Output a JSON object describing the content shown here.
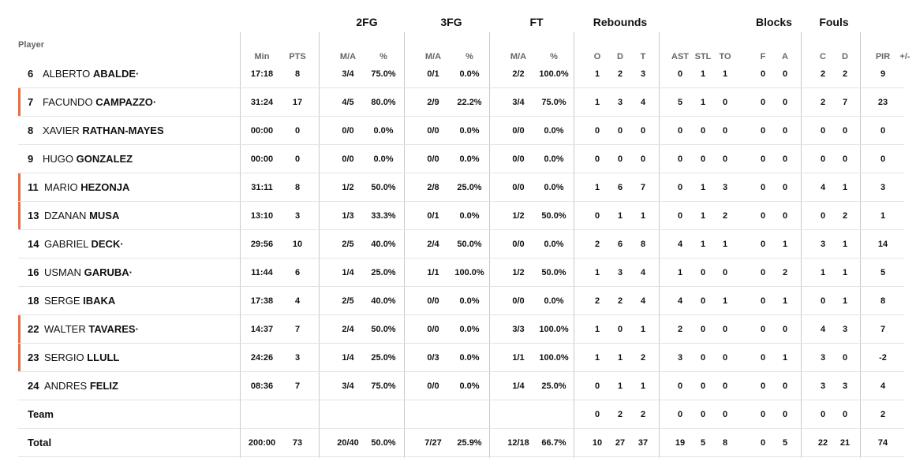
{
  "groups": {
    "fg2": "2FG",
    "fg3": "3FG",
    "ft": "FT",
    "reb": "Rebounds",
    "blk": "Blocks",
    "fouls": "Fouls"
  },
  "player_header": "Player",
  "subheaders": {
    "min": "Min",
    "pts": "PTS",
    "fg2_ma": "M/A",
    "fg2_pct": "%",
    "fg3_ma": "M/A",
    "fg3_pct": "%",
    "ft_ma": "M/A",
    "ft_pct": "%",
    "o": "O",
    "d": "D",
    "t": "T",
    "ast": "AST",
    "stl": "STL",
    "to": "TO",
    "f": "F",
    "a": "A",
    "c": "C",
    "dfoul": "D",
    "pir": "PIR",
    "pm": "+/-"
  },
  "colors": {
    "accent": "#ee6c3c"
  },
  "players": [
    {
      "num": "6",
      "first": "ALBERTO",
      "last": "ABALDE",
      "mark": "·",
      "accent": false,
      "min": "17:18",
      "pts": "8",
      "fg2_ma": "3/4",
      "fg2_pct": "75.0%",
      "fg3_ma": "0/1",
      "fg3_pct": "0.0%",
      "ft_ma": "2/2",
      "ft_pct": "100.0%",
      "o": "1",
      "d": "2",
      "t": "3",
      "ast": "0",
      "stl": "1",
      "to": "1",
      "f": "0",
      "a": "0",
      "c": "2",
      "dfoul": "2",
      "pir": "9",
      "pm": ""
    },
    {
      "num": "7",
      "first": "FACUNDO",
      "last": "CAMPAZZO",
      "mark": "·",
      "accent": true,
      "min": "31:24",
      "pts": "17",
      "fg2_ma": "4/5",
      "fg2_pct": "80.0%",
      "fg3_ma": "2/9",
      "fg3_pct": "22.2%",
      "ft_ma": "3/4",
      "ft_pct": "75.0%",
      "o": "1",
      "d": "3",
      "t": "4",
      "ast": "5",
      "stl": "1",
      "to": "0",
      "f": "0",
      "a": "0",
      "c": "2",
      "dfoul": "7",
      "pir": "23",
      "pm": ""
    },
    {
      "num": "8",
      "first": "XAVIER",
      "last": "RATHAN-MAYES",
      "mark": "",
      "accent": false,
      "min": "00:00",
      "pts": "0",
      "fg2_ma": "0/0",
      "fg2_pct": "0.0%",
      "fg3_ma": "0/0",
      "fg3_pct": "0.0%",
      "ft_ma": "0/0",
      "ft_pct": "0.0%",
      "o": "0",
      "d": "0",
      "t": "0",
      "ast": "0",
      "stl": "0",
      "to": "0",
      "f": "0",
      "a": "0",
      "c": "0",
      "dfoul": "0",
      "pir": "0",
      "pm": ""
    },
    {
      "num": "9",
      "first": "HUGO",
      "last": "GONZALEZ",
      "mark": "",
      "accent": false,
      "min": "00:00",
      "pts": "0",
      "fg2_ma": "0/0",
      "fg2_pct": "0.0%",
      "fg3_ma": "0/0",
      "fg3_pct": "0.0%",
      "ft_ma": "0/0",
      "ft_pct": "0.0%",
      "o": "0",
      "d": "0",
      "t": "0",
      "ast": "0",
      "stl": "0",
      "to": "0",
      "f": "0",
      "a": "0",
      "c": "0",
      "dfoul": "0",
      "pir": "0",
      "pm": ""
    },
    {
      "num": "11",
      "first": "MARIO",
      "last": "HEZONJA",
      "mark": "",
      "accent": true,
      "min": "31:11",
      "pts": "8",
      "fg2_ma": "1/2",
      "fg2_pct": "50.0%",
      "fg3_ma": "2/8",
      "fg3_pct": "25.0%",
      "ft_ma": "0/0",
      "ft_pct": "0.0%",
      "o": "1",
      "d": "6",
      "t": "7",
      "ast": "0",
      "stl": "1",
      "to": "3",
      "f": "0",
      "a": "0",
      "c": "4",
      "dfoul": "1",
      "pir": "3",
      "pm": ""
    },
    {
      "num": "13",
      "first": "DZANAN",
      "last": "MUSA",
      "mark": "",
      "accent": true,
      "min": "13:10",
      "pts": "3",
      "fg2_ma": "1/3",
      "fg2_pct": "33.3%",
      "fg3_ma": "0/1",
      "fg3_pct": "0.0%",
      "ft_ma": "1/2",
      "ft_pct": "50.0%",
      "o": "0",
      "d": "1",
      "t": "1",
      "ast": "0",
      "stl": "1",
      "to": "2",
      "f": "0",
      "a": "0",
      "c": "0",
      "dfoul": "2",
      "pir": "1",
      "pm": ""
    },
    {
      "num": "14",
      "first": "GABRIEL",
      "last": "DECK",
      "mark": "·",
      "accent": false,
      "min": "29:56",
      "pts": "10",
      "fg2_ma": "2/5",
      "fg2_pct": "40.0%",
      "fg3_ma": "2/4",
      "fg3_pct": "50.0%",
      "ft_ma": "0/0",
      "ft_pct": "0.0%",
      "o": "2",
      "d": "6",
      "t": "8",
      "ast": "4",
      "stl": "1",
      "to": "1",
      "f": "0",
      "a": "1",
      "c": "3",
      "dfoul": "1",
      "pir": "14",
      "pm": ""
    },
    {
      "num": "16",
      "first": "USMAN",
      "last": "GARUBA",
      "mark": "·",
      "accent": false,
      "min": "11:44",
      "pts": "6",
      "fg2_ma": "1/4",
      "fg2_pct": "25.0%",
      "fg3_ma": "1/1",
      "fg3_pct": "100.0%",
      "ft_ma": "1/2",
      "ft_pct": "50.0%",
      "o": "1",
      "d": "3",
      "t": "4",
      "ast": "1",
      "stl": "0",
      "to": "0",
      "f": "0",
      "a": "2",
      "c": "1",
      "dfoul": "1",
      "pir": "5",
      "pm": ""
    },
    {
      "num": "18",
      "first": "SERGE",
      "last": "IBAKA",
      "mark": "",
      "accent": false,
      "min": "17:38",
      "pts": "4",
      "fg2_ma": "2/5",
      "fg2_pct": "40.0%",
      "fg3_ma": "0/0",
      "fg3_pct": "0.0%",
      "ft_ma": "0/0",
      "ft_pct": "0.0%",
      "o": "2",
      "d": "2",
      "t": "4",
      "ast": "4",
      "stl": "0",
      "to": "1",
      "f": "0",
      "a": "1",
      "c": "0",
      "dfoul": "1",
      "pir": "8",
      "pm": ""
    },
    {
      "num": "22",
      "first": "WALTER",
      "last": "TAVARES",
      "mark": "·",
      "accent": true,
      "min": "14:37",
      "pts": "7",
      "fg2_ma": "2/4",
      "fg2_pct": "50.0%",
      "fg3_ma": "0/0",
      "fg3_pct": "0.0%",
      "ft_ma": "3/3",
      "ft_pct": "100.0%",
      "o": "1",
      "d": "0",
      "t": "1",
      "ast": "2",
      "stl": "0",
      "to": "0",
      "f": "0",
      "a": "0",
      "c": "4",
      "dfoul": "3",
      "pir": "7",
      "pm": ""
    },
    {
      "num": "23",
      "first": "SERGIO",
      "last": "LLULL",
      "mark": "",
      "accent": true,
      "min": "24:26",
      "pts": "3",
      "fg2_ma": "1/4",
      "fg2_pct": "25.0%",
      "fg3_ma": "0/3",
      "fg3_pct": "0.0%",
      "ft_ma": "1/1",
      "ft_pct": "100.0%",
      "o": "1",
      "d": "1",
      "t": "2",
      "ast": "3",
      "stl": "0",
      "to": "0",
      "f": "0",
      "a": "1",
      "c": "3",
      "dfoul": "0",
      "pir": "-2",
      "pm": ""
    },
    {
      "num": "24",
      "first": "ANDRES",
      "last": "FELIZ",
      "mark": "",
      "accent": false,
      "min": "08:36",
      "pts": "7",
      "fg2_ma": "3/4",
      "fg2_pct": "75.0%",
      "fg3_ma": "0/0",
      "fg3_pct": "0.0%",
      "ft_ma": "1/4",
      "ft_pct": "25.0%",
      "o": "0",
      "d": "1",
      "t": "1",
      "ast": "0",
      "stl": "0",
      "to": "0",
      "f": "0",
      "a": "0",
      "c": "3",
      "dfoul": "3",
      "pir": "4",
      "pm": ""
    }
  ],
  "team": {
    "label": "Team",
    "min": "",
    "pts": "",
    "fg2_ma": "",
    "fg2_pct": "",
    "fg3_ma": "",
    "fg3_pct": "",
    "ft_ma": "",
    "ft_pct": "",
    "o": "0",
    "d": "2",
    "t": "2",
    "ast": "0",
    "stl": "0",
    "to": "0",
    "f": "0",
    "a": "0",
    "c": "0",
    "dfoul": "0",
    "pir": "2",
    "pm": ""
  },
  "total": {
    "label": "Total",
    "min": "200:00",
    "pts": "73",
    "fg2_ma": "20/40",
    "fg2_pct": "50.0%",
    "fg3_ma": "7/27",
    "fg3_pct": "25.9%",
    "ft_ma": "12/18",
    "ft_pct": "66.7%",
    "o": "10",
    "d": "27",
    "t": "37",
    "ast": "19",
    "stl": "5",
    "to": "8",
    "f": "0",
    "a": "5",
    "c": "22",
    "dfoul": "21",
    "pir": "74",
    "pm": ""
  }
}
